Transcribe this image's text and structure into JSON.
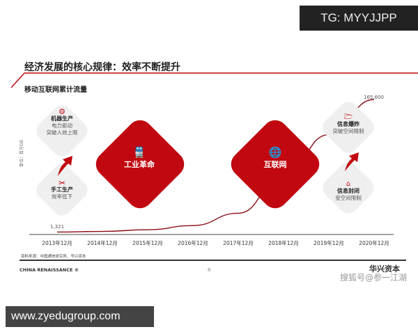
{
  "watermark_top": "TG: MYYJJPP",
  "watermark_bottom": "www.zyedugroup.com",
  "watermark_sohu": "搜狐号@参一江湖",
  "title": "经济发展的核心规律：效率不断提升",
  "subtitle": "移动互联网累计流量",
  "unit": "单位：百万GB",
  "boxes": {
    "machine": {
      "title": "机器生产",
      "l1": "电力驱动",
      "l2": "突破人效上限",
      "icon": "robot-arm-icon"
    },
    "manual": {
      "title": "手工生产",
      "l1": "效率低下",
      "icon": "scissors-icon"
    },
    "industrial": {
      "title": "工业革命",
      "icon": "train-icon"
    },
    "internet": {
      "title": "互联网",
      "icon": "globe-icon"
    },
    "explosion": {
      "title": "信息爆炸",
      "l1": "突破空间限制",
      "icon": "folder-icon"
    },
    "closed": {
      "title": "信息封闭",
      "l1": "受空间限制",
      "icon": "house-icon"
    }
  },
  "source": "资料来源：中国通信研究所、华兴资本",
  "footer": {
    "left": "CHINA RENAISSANCE ©",
    "page": "6",
    "logo": "华兴资本"
  },
  "colors": {
    "accent": "#c1070f",
    "line": "#8a0a14"
  },
  "chart_data": {
    "type": "line",
    "categories": [
      "2013年12月",
      "2014年12月",
      "2015年12月",
      "2016年12月",
      "2017年12月",
      "2018年12月",
      "2019年12月",
      "2020年12月"
    ],
    "values": [
      1321,
      2060,
      4190,
      9360,
      24600,
      71100,
      122000,
      165600
    ],
    "data_labels": {
      "first": "1,321",
      "last": "165,600"
    },
    "ylabel": "单位：百万GB",
    "grid": false
  }
}
